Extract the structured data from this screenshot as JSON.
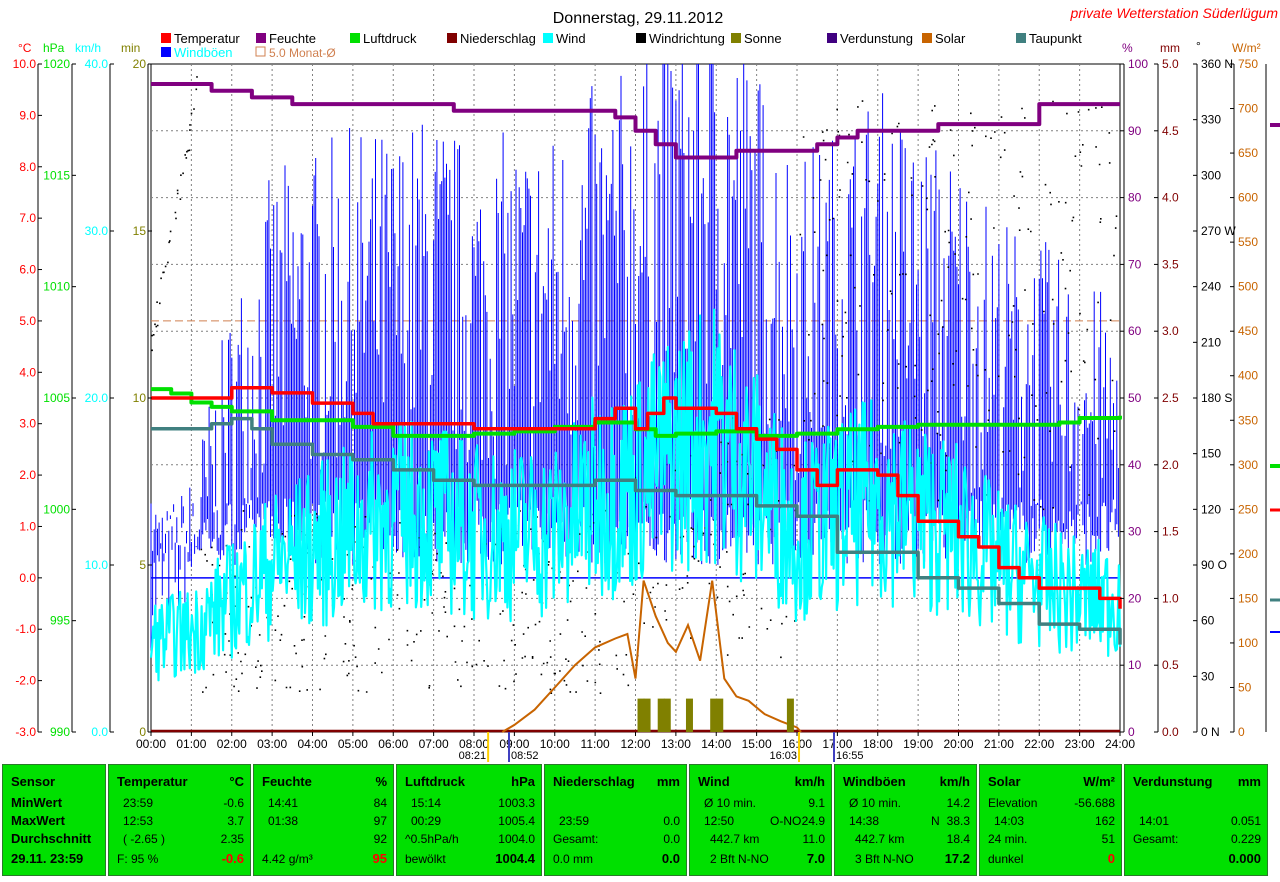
{
  "title": "Donnerstag, 29.11.2012",
  "brand": "private Wetterstation Süderlügum",
  "colors": {
    "temperature": "#ff0000",
    "humidity": "#800080",
    "pressure": "#00e000",
    "precip": "#800000",
    "wind": "#00ffff",
    "gust": "#0000ff",
    "winddir": "#000000",
    "sun": "#808000",
    "evap": "#400080",
    "solar": "#c86400",
    "dewpoint": "#408080",
    "monthavg": "#d08050",
    "panel": "#00e000"
  },
  "legend": [
    {
      "label": "Temperatur",
      "color": "#ff0000"
    },
    {
      "label": "Feuchte",
      "color": "#800080"
    },
    {
      "label": "Luftdruck",
      "color": "#00e000"
    },
    {
      "label": "Niederschlag",
      "color": "#800000"
    },
    {
      "label": "Wind",
      "color": "#00ffff"
    },
    {
      "label": "Windrichtung",
      "color": "#000000"
    },
    {
      "label": "Sonne",
      "color": "#808000"
    },
    {
      "label": "Verdunstung",
      "color": "#400080"
    },
    {
      "label": "Solar",
      "color": "#c86400"
    },
    {
      "label": "Taupunkt",
      "color": "#408080"
    },
    {
      "label": "Windböen",
      "color": "#0000ff"
    },
    {
      "label": "5.0 Monat-Ø",
      "color": "#d08050"
    }
  ],
  "axes_units": {
    "temp": "°C",
    "pressure": "hPa",
    "wind": "km/h",
    "sun": "min",
    "humidity": "%",
    "precip": "mm",
    "dir": "°",
    "solar": "W/m²"
  },
  "chart_data": {
    "type": "line",
    "xlim": [
      0,
      24
    ],
    "x_ticks": [
      "00:00",
      "01:00",
      "02:00",
      "03:00",
      "04:00",
      "05:00",
      "06:00",
      "07:00",
      "08:00",
      "09:00",
      "10:00",
      "11:00",
      "12:00",
      "13:00",
      "14:00",
      "15:00",
      "16:00",
      "17:00",
      "18:00",
      "19:00",
      "20:00",
      "21:00",
      "22:00",
      "23:00",
      "24:00"
    ],
    "axes": {
      "temp": {
        "range": [
          -3,
          10
        ],
        "ticks": [
          "10.0",
          "9.0",
          "8.0",
          "7.0",
          "6.0",
          "5.0",
          "4.0",
          "3.0",
          "2.0",
          "1.0",
          "0.0",
          "-1.0",
          "-2.0",
          "-3.0"
        ]
      },
      "pressure": {
        "range": [
          990,
          1020
        ],
        "ticks": [
          "1020",
          "1015",
          "1010",
          "1005",
          "1000",
          "995",
          "990"
        ]
      },
      "wind": {
        "range": [
          0,
          40
        ],
        "ticks": [
          "40.0",
          "30.0",
          "20.0",
          "10.0",
          "0.0"
        ]
      },
      "sun": {
        "range": [
          0,
          20
        ],
        "ticks": [
          "20",
          "15",
          "10",
          "5",
          "0"
        ]
      },
      "humidity": {
        "range": [
          0,
          100
        ],
        "ticks": [
          "100",
          "90",
          "80",
          "70",
          "60",
          "50",
          "40",
          "30",
          "20",
          "10",
          "0"
        ]
      },
      "precip": {
        "range": [
          0,
          5
        ],
        "ticks": [
          "5.0",
          "4.5",
          "4.0",
          "3.5",
          "3.0",
          "2.5",
          "2.0",
          "1.5",
          "1.0",
          "0.5",
          "0.0"
        ]
      },
      "dir": {
        "range": [
          0,
          360
        ],
        "ticks": [
          "360 N",
          "330",
          "300",
          "270 W",
          "240",
          "210",
          "180 S",
          "150",
          "120",
          "90 O",
          "60",
          "30",
          "0 N"
        ]
      },
      "solar": {
        "range": [
          0,
          750
        ],
        "ticks": [
          "750",
          "700",
          "650",
          "600",
          "550",
          "500",
          "450",
          "400",
          "350",
          "300",
          "250",
          "200",
          "150",
          "100",
          "50",
          "0"
        ]
      }
    },
    "monthly_avg_temp": 5.0,
    "sun_markers": [
      "08:21",
      "08:52",
      "16:03",
      "16:55"
    ],
    "series": [
      {
        "name": "Temperatur",
        "axis": "temp",
        "x": [
          0,
          1,
          1.5,
          2,
          3,
          4,
          5,
          5.5,
          6,
          7,
          8,
          9,
          10,
          11,
          11.5,
          12,
          12.3,
          12.7,
          13,
          13.5,
          14,
          14.5,
          15,
          15.5,
          16,
          16.5,
          17,
          17.5,
          18,
          18.5,
          19,
          19.5,
          20,
          20.5,
          21,
          21.5,
          22,
          22.5,
          23,
          23.5,
          24
        ],
        "y": [
          3.5,
          3.5,
          3.5,
          3.7,
          3.6,
          3.4,
          3.2,
          3.0,
          3.0,
          3.0,
          2.9,
          2.9,
          2.9,
          3.1,
          3.3,
          2.9,
          3.2,
          3.5,
          3.3,
          3.3,
          3.2,
          2.9,
          2.7,
          2.5,
          2.1,
          1.8,
          2.1,
          2.1,
          2.0,
          1.6,
          1.1,
          1.1,
          0.8,
          0.6,
          0.2,
          0.0,
          -0.2,
          -0.2,
          -0.2,
          -0.4,
          -0.6
        ]
      },
      {
        "name": "Feuchte",
        "axis": "humidity",
        "x": [
          0,
          0.5,
          1,
          1.5,
          2,
          2.5,
          3,
          3.5,
          4,
          4.5,
          5,
          5.5,
          6,
          6.5,
          7,
          7.5,
          8,
          8.5,
          9,
          10,
          11,
          11.5,
          12,
          12.5,
          13,
          13.5,
          14,
          14.5,
          15,
          15.5,
          16,
          16.5,
          17,
          17.5,
          18,
          18.5,
          19,
          19.5,
          20,
          21,
          21.5,
          22,
          23,
          24
        ],
        "y": [
          97,
          97,
          97,
          96,
          96,
          95,
          95,
          94,
          94,
          94,
          94,
          94,
          94,
          94,
          94,
          93,
          93,
          93,
          93,
          93,
          93,
          92,
          90,
          88,
          86,
          86,
          86,
          87,
          87,
          87,
          87,
          88,
          89,
          90,
          90,
          90,
          90,
          91,
          91,
          91,
          91,
          94,
          94,
          94
        ]
      },
      {
        "name": "Luftdruck",
        "axis": "pressure",
        "x": [
          0,
          0.5,
          1,
          1.5,
          2,
          3,
          4,
          5,
          6,
          7,
          8,
          9,
          10,
          11,
          12,
          12.5,
          13,
          14,
          15,
          16,
          17,
          18,
          19,
          20,
          21,
          22,
          22.5,
          23,
          24
        ],
        "y": [
          1005.4,
          1005.2,
          1004.8,
          1004.6,
          1004.4,
          1004.0,
          1004.0,
          1003.7,
          1003.3,
          1003.3,
          1003.4,
          1003.5,
          1003.7,
          1003.9,
          1003.6,
          1003.3,
          1003.4,
          1003.5,
          1003.3,
          1003.4,
          1003.6,
          1003.7,
          1003.8,
          1003.8,
          1003.8,
          1003.8,
          1003.9,
          1004.1,
          1004.2
        ]
      },
      {
        "name": "Taupunkt",
        "axis": "temp",
        "x": [
          0,
          1,
          1.5,
          2,
          2.5,
          3,
          4,
          5,
          6,
          7,
          8,
          9,
          10,
          11,
          12,
          13,
          14,
          15,
          16,
          17,
          18,
          19,
          20,
          21,
          22,
          23,
          24
        ],
        "y": [
          2.9,
          2.9,
          3.0,
          3.1,
          2.9,
          2.6,
          2.4,
          2.3,
          2.1,
          1.9,
          1.8,
          1.8,
          1.8,
          1.9,
          1.7,
          1.6,
          1.6,
          1.4,
          1.2,
          0.5,
          0.5,
          0.0,
          -0.2,
          -0.5,
          -0.9,
          -1.0,
          -1.3
        ]
      },
      {
        "name": "Solar",
        "axis": "solar",
        "x": [
          8.7,
          9,
          9.5,
          10,
          10.5,
          11,
          11.5,
          11.8,
          12,
          12.2,
          12.5,
          12.8,
          13,
          13.3,
          13.6,
          13.9,
          14.2,
          14.5,
          14.8,
          15.2,
          15.6,
          16,
          16.1
        ],
        "y": [
          0,
          8,
          25,
          50,
          75,
          95,
          105,
          110,
          60,
          170,
          130,
          100,
          90,
          120,
          80,
          170,
          60,
          40,
          35,
          20,
          12,
          5,
          0
        ]
      },
      {
        "name": "Wind",
        "axis": "wind",
        "x": [
          0,
          1,
          2,
          3,
          4,
          5,
          6,
          7,
          8,
          9,
          10,
          11,
          12,
          13,
          14,
          15,
          16,
          17,
          18,
          19,
          20,
          21,
          22,
          23,
          24
        ],
        "y": [
          5.5,
          6,
          8,
          10,
          11,
          12,
          13,
          13,
          12,
          12,
          12,
          14,
          15,
          17,
          18,
          15,
          12,
          13,
          14,
          13,
          12,
          10,
          9,
          8,
          8
        ]
      },
      {
        "name": "Windböen",
        "axis": "wind",
        "x": [
          0,
          1,
          2,
          3,
          4,
          5,
          6,
          7,
          8,
          9,
          10,
          11,
          12,
          13,
          14,
          15,
          16,
          17,
          18,
          19,
          20,
          21,
          22,
          23,
          24
        ],
        "y": [
          9,
          12,
          20,
          26,
          27,
          28,
          28,
          29,
          27,
          28,
          28,
          30,
          31,
          34,
          35,
          31,
          27,
          28,
          30,
          28,
          27,
          24,
          23,
          21,
          20
        ]
      }
    ]
  },
  "panel": {
    "sensor": {
      "header": "Sensor",
      "rows": [
        "MinWert",
        "MaxWert",
        "Durchschnitt",
        "29.11. 23:59"
      ]
    },
    "temperature": {
      "header": "Temperatur",
      "unit": "°C",
      "rows": [
        [
          "23:59",
          "-0.6"
        ],
        [
          "12:53",
          "3.7"
        ],
        [
          "( -2.65 )",
          "2.35"
        ],
        [
          "F: 95 %",
          "-0.6"
        ]
      ]
    },
    "humidity": {
      "header": "Feuchte",
      "unit": "%",
      "rows": [
        [
          "14:41",
          "84"
        ],
        [
          "01:38",
          "97"
        ],
        [
          "",
          "92"
        ],
        [
          "4.42 g/m³",
          "95"
        ]
      ]
    },
    "pressure": {
      "header": "Luftdruck",
      "unit": "hPa",
      "rows": [
        [
          "15:14",
          "1003.3"
        ],
        [
          "00:29",
          "1005.4"
        ],
        [
          "^0.5hPa/h",
          "1004.0"
        ],
        [
          "bewölkt",
          "1004.4"
        ]
      ]
    },
    "precip": {
      "header": "Niederschlag",
      "unit": "mm",
      "rows": [
        [
          "",
          ""
        ],
        [
          "23:59",
          "0.0"
        ],
        [
          "Gesamt:",
          "0.0"
        ],
        [
          "0.0 mm",
          "0.0"
        ]
      ]
    },
    "wind": {
      "header": "Wind",
      "unit": "km/h",
      "rows": [
        [
          "Ø 10 min.",
          "",
          "9.1"
        ],
        [
          "12:50",
          "O-NO",
          "24.9"
        ],
        [
          "442.7 km",
          "",
          "11.0"
        ],
        [
          "2 Bft N-NO",
          "",
          "7.0"
        ]
      ]
    },
    "gust": {
      "header": "Windböen",
      "unit": "km/h",
      "rows": [
        [
          "Ø 10 min.",
          "",
          "14.2"
        ],
        [
          "14:38",
          "N",
          "38.3"
        ],
        [
          "442.7 km",
          "",
          "18.4"
        ],
        [
          "3 Bft N-NO",
          "",
          "17.2"
        ]
      ]
    },
    "solar": {
      "header": "Solar",
      "unit": "W/m²",
      "rows": [
        [
          "Elevation",
          "-56.688"
        ],
        [
          "14:03",
          "162"
        ],
        [
          "24 min.",
          "51"
        ],
        [
          "dunkel",
          "0"
        ]
      ]
    },
    "evap": {
      "header": "Verdunstung",
      "unit": "mm",
      "rows": [
        [
          "",
          ""
        ],
        [
          "14:01",
          "0.051"
        ],
        [
          "Gesamt:",
          "0.229"
        ],
        [
          "",
          "0.000"
        ]
      ]
    }
  }
}
